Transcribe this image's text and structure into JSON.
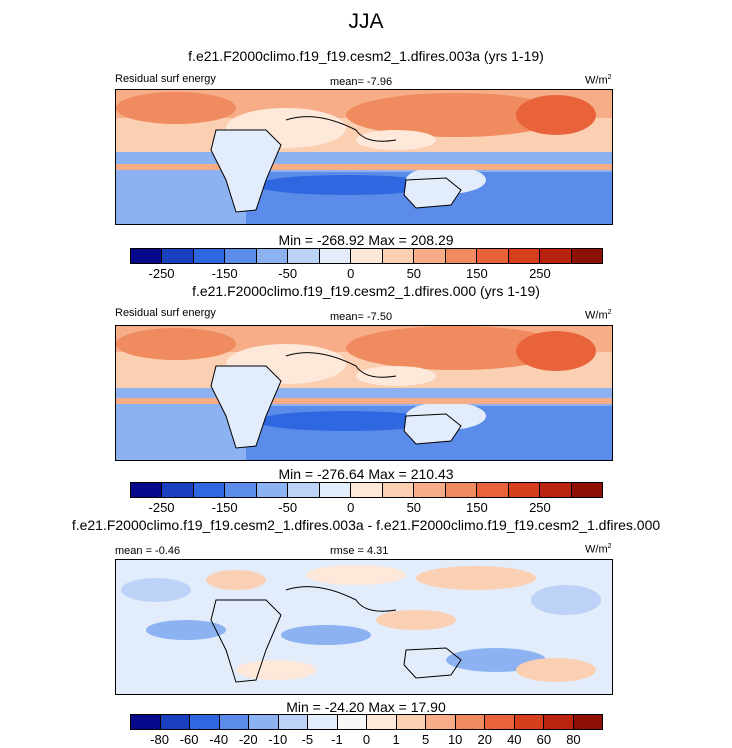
{
  "title": "JJA",
  "panels": [
    {
      "id": "panel-1",
      "case_title": "f.e21.F2000climo.f19_f19.cesm2_1.dfires.003a (yrs 1-19)",
      "left_label": "Residual surf energy",
      "center_label": "mean=  -7.96",
      "units": "W/m",
      "units_sup": "2",
      "minmax": "Min = -268.92 Max = 208.29"
    },
    {
      "id": "panel-2",
      "case_title": "f.e21.F2000climo.f19_f19.cesm2_1.dfires.000 (yrs 1-19)",
      "left_label": "Residual surf energy",
      "center_label": "mean=  -7.50",
      "units": "W/m",
      "units_sup": "2",
      "minmax": "Min = -276.64 Max = 210.43"
    },
    {
      "id": "panel-3",
      "case_title": "f.e21.F2000climo.f19_f19.cesm2_1.dfires.003a - f.e21.F2000climo.f19_f19.cesm2_1.dfires.000",
      "left_label": "mean =  -0.46",
      "center_label": "rmse =  4.31",
      "units": "W/m",
      "units_sup": "2",
      "minmax": "Min = -24.20 Max = 17.90"
    }
  ],
  "chart_data": [
    {
      "type": "heatmap",
      "name": "Residual surf energy (dfires.003a)",
      "variable": "Residual surf energy",
      "mean": -7.96,
      "min": -268.92,
      "max": 208.29,
      "colorbar_ticks": [
        "-250",
        "-150",
        "-50",
        "0",
        "50",
        "150",
        "250"
      ],
      "colorbar_tick_positions": [
        1,
        3,
        5,
        7,
        9,
        11,
        13
      ],
      "colorbar_colors": [
        "#08088c",
        "#1a3fbf",
        "#2f67e0",
        "#5b8cea",
        "#8cb2f2",
        "#bcd3f7",
        "#e2ecfb",
        "#fde8d9",
        "#fbcfb2",
        "#f6ad88",
        "#f08a5f",
        "#e8633a",
        "#d63f1e",
        "#b8240d",
        "#8c1004"
      ]
    },
    {
      "type": "heatmap",
      "name": "Residual surf energy (dfires.000)",
      "variable": "Residual surf energy",
      "mean": -7.5,
      "min": -276.64,
      "max": 210.43,
      "colorbar_ticks": [
        "-250",
        "-150",
        "-50",
        "0",
        "50",
        "150",
        "250"
      ],
      "colorbar_tick_positions": [
        1,
        3,
        5,
        7,
        9,
        11,
        13
      ],
      "colorbar_colors": [
        "#08088c",
        "#1a3fbf",
        "#2f67e0",
        "#5b8cea",
        "#8cb2f2",
        "#bcd3f7",
        "#e2ecfb",
        "#fde8d9",
        "#fbcfb2",
        "#f6ad88",
        "#f08a5f",
        "#e8633a",
        "#d63f1e",
        "#b8240d",
        "#8c1004"
      ]
    },
    {
      "type": "heatmap",
      "name": "Difference (003a - 000)",
      "mean": -0.46,
      "rmse": 4.31,
      "min": -24.2,
      "max": 17.9,
      "colorbar_ticks": [
        "-80",
        "-60",
        "-40",
        "-20",
        "-10",
        "-5",
        "-1",
        "0",
        "1",
        "5",
        "10",
        "20",
        "40",
        "60",
        "80"
      ],
      "colorbar_tick_positions": [
        1,
        2,
        3,
        4,
        5,
        6,
        7,
        8,
        9,
        10,
        11,
        12,
        13,
        14,
        15
      ],
      "colorbar_colors": [
        "#08088c",
        "#1a3fbf",
        "#2f67e0",
        "#5b8cea",
        "#8cb2f2",
        "#bcd3f7",
        "#e2ecfb",
        "#f7f7f7",
        "#fde8d9",
        "#fbcfb2",
        "#f6ad88",
        "#f08a5f",
        "#e8633a",
        "#d63f1e",
        "#b8240d",
        "#8c1004"
      ]
    }
  ]
}
